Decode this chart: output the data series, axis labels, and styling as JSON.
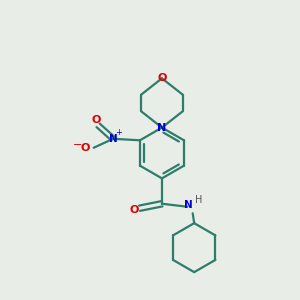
{
  "background_color": "#e8ede8",
  "bond_color": "#2d7d6a",
  "N_color": "#0000dd",
  "O_color": "#dd0000",
  "H_color": "#555555",
  "line_width": 1.6,
  "figsize": [
    3.0,
    3.0
  ],
  "dpi": 100,
  "xlim": [
    0,
    10
  ],
  "ylim": [
    0,
    10
  ]
}
